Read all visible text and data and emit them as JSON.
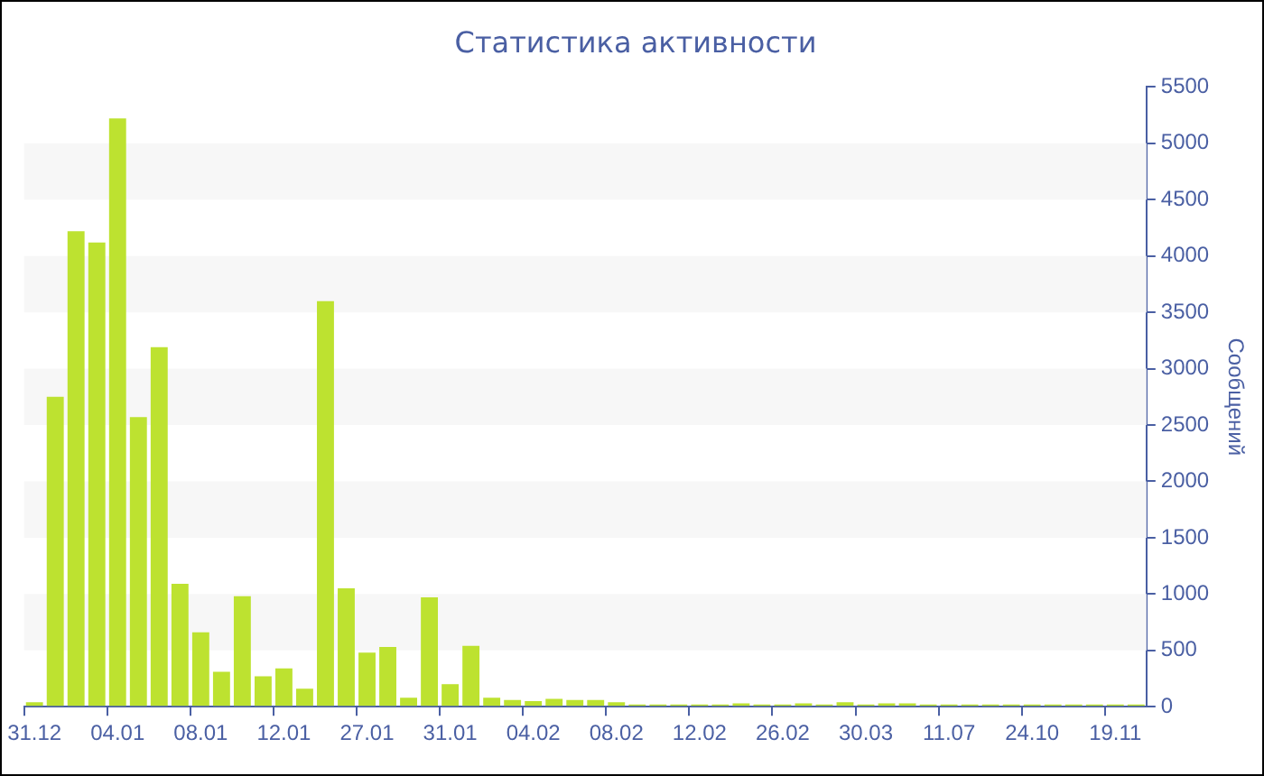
{
  "chart_data": {
    "type": "bar",
    "title": "Статистика активности",
    "ylabel": "Сообщений",
    "categories": [
      "31.12",
      null,
      null,
      null,
      "04.01",
      null,
      null,
      null,
      "08.01",
      null,
      null,
      null,
      "12.01",
      null,
      null,
      null,
      "27.01",
      null,
      null,
      null,
      "31.01",
      null,
      null,
      null,
      "04.02",
      null,
      null,
      null,
      "08.02",
      null,
      null,
      null,
      "12.02",
      null,
      null,
      null,
      "26.02",
      null,
      null,
      null,
      "30.03",
      null,
      null,
      null,
      "11.07",
      null,
      null,
      null,
      "24.10",
      null,
      null,
      null,
      "19.11",
      null
    ],
    "series": [
      {
        "color": "#bde230",
        "values": [
          40,
          2750,
          4220,
          4120,
          5220,
          2570,
          3190,
          1090,
          660,
          310,
          980,
          270,
          340,
          160,
          3600,
          1050,
          480,
          530,
          80,
          970,
          200,
          540,
          80,
          60,
          50,
          70,
          60,
          60,
          40,
          20,
          20,
          20,
          20,
          20,
          30,
          20,
          20,
          30,
          20,
          40,
          20,
          30,
          30,
          20,
          20,
          20,
          20,
          20,
          20,
          20,
          20,
          20,
          20,
          20
        ]
      }
    ],
    "ylim": [
      0,
      5500
    ],
    "yticks": [
      0,
      500,
      1000,
      1500,
      2000,
      2500,
      3000,
      3500,
      4000,
      4500,
      5000,
      5500
    ],
    "bands": [
      {
        "axis": "y",
        "from": 500,
        "to": 1000,
        "color": "#f7f7f7"
      },
      {
        "axis": "y",
        "from": 1500,
        "to": 2000,
        "color": "#f7f7f7"
      },
      {
        "axis": "y",
        "from": 2500,
        "to": 3000,
        "color": "#f7f7f7"
      },
      {
        "axis": "y",
        "from": 3500,
        "to": 4000,
        "color": "#f7f7f7"
      },
      {
        "axis": "y",
        "from": 4500,
        "to": 5000,
        "color": "#f7f7f7"
      }
    ],
    "grid": false,
    "legend": false
  }
}
